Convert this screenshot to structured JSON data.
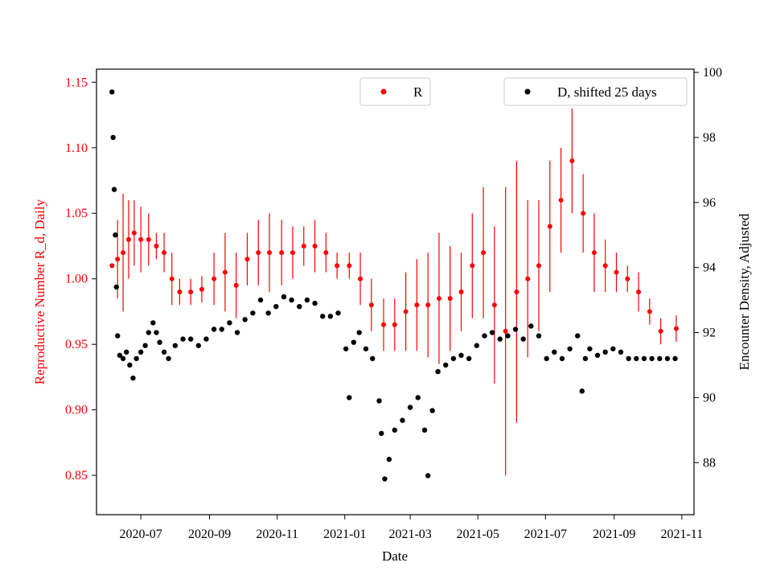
{
  "colors": {
    "r_series": "#ff0000",
    "d_series": "#000000",
    "axes": "#000000",
    "background": "#ffffff"
  },
  "chart_data": {
    "type": "scatter",
    "xlabel": "Date",
    "ylabel_left": "Reproductive Number R_d, Daily",
    "ylabel_right": "Encounter Density, Adjusted",
    "x_ticks": [
      "2020-07",
      "2020-09",
      "2020-11",
      "2021-01",
      "2021-03",
      "2021-05",
      "2021-07",
      "2021-09",
      "2021-11"
    ],
    "ylim_left": [
      0.82,
      1.16
    ],
    "ylim_right": [
      86.4,
      100.1
    ],
    "y_ticks_left": [
      "0.85",
      "0.90",
      "0.95",
      "1.00",
      "1.05",
      "1.10",
      "1.15"
    ],
    "y_ticks_right": [
      "88",
      "90",
      "92",
      "94",
      "96",
      "98",
      "100"
    ],
    "legend_left": {
      "label": "R",
      "placement": "top-center"
    },
    "legend_right": {
      "label": "D, shifted 25 days",
      "placement": "top-right"
    },
    "series": [
      {
        "name": "R",
        "axis": "left",
        "marker": "dot with error bars",
        "points": [
          [
            "2020-06-05",
            1.01,
            0.0
          ],
          [
            "2020-06-10",
            1.015,
            0.03
          ],
          [
            "2020-06-15",
            1.02,
            0.045
          ],
          [
            "2020-06-20",
            1.03,
            0.03
          ],
          [
            "2020-06-25",
            1.035,
            0.025
          ],
          [
            "2020-07-01",
            1.03,
            0.025
          ],
          [
            "2020-07-08",
            1.03,
            0.02
          ],
          [
            "2020-07-15",
            1.025,
            0.01
          ],
          [
            "2020-07-22",
            1.02,
            0.015
          ],
          [
            "2020-07-29",
            1.0,
            0.02
          ],
          [
            "2020-08-05",
            0.99,
            0.01
          ],
          [
            "2020-08-15",
            0.99,
            0.01
          ],
          [
            "2020-08-25",
            0.992,
            0.01
          ],
          [
            "2020-09-05",
            1.0,
            0.02
          ],
          [
            "2020-09-15",
            1.005,
            0.03
          ],
          [
            "2020-09-25",
            0.995,
            0.025
          ],
          [
            "2020-10-05",
            1.015,
            0.02
          ],
          [
            "2020-10-15",
            1.02,
            0.025
          ],
          [
            "2020-10-25",
            1.02,
            0.03
          ],
          [
            "2020-11-05",
            1.02,
            0.025
          ],
          [
            "2020-11-15",
            1.02,
            0.02
          ],
          [
            "2020-11-25",
            1.025,
            0.015
          ],
          [
            "2020-12-05",
            1.025,
            0.02
          ],
          [
            "2020-12-15",
            1.02,
            0.015
          ],
          [
            "2020-12-25",
            1.01,
            0.01
          ],
          [
            "2021-01-05",
            1.01,
            0.01
          ],
          [
            "2021-01-15",
            1.0,
            0.02
          ],
          [
            "2021-01-25",
            0.98,
            0.02
          ],
          [
            "2021-02-05",
            0.965,
            0.02
          ],
          [
            "2021-02-15",
            0.965,
            0.02
          ],
          [
            "2021-02-25",
            0.975,
            0.03
          ],
          [
            "2021-03-07",
            0.98,
            0.035
          ],
          [
            "2021-03-17",
            0.98,
            0.04
          ],
          [
            "2021-03-27",
            0.985,
            0.05
          ],
          [
            "2021-04-06",
            0.985,
            0.04
          ],
          [
            "2021-04-16",
            0.99,
            0.03
          ],
          [
            "2021-04-26",
            1.01,
            0.04
          ],
          [
            "2021-05-06",
            1.02,
            0.05
          ],
          [
            "2021-05-16",
            0.98,
            0.06
          ],
          [
            "2021-05-26",
            0.96,
            0.11
          ],
          [
            "2021-06-05",
            0.99,
            0.1
          ],
          [
            "2021-06-15",
            1.0,
            0.06
          ],
          [
            "2021-06-25",
            1.01,
            0.05
          ],
          [
            "2021-07-05",
            1.04,
            0.05
          ],
          [
            "2021-07-15",
            1.06,
            0.04
          ],
          [
            "2021-07-25",
            1.09,
            0.04
          ],
          [
            "2021-08-04",
            1.05,
            0.03
          ],
          [
            "2021-08-14",
            1.02,
            0.03
          ],
          [
            "2021-08-24",
            1.01,
            0.02
          ],
          [
            "2021-09-03",
            1.005,
            0.015
          ],
          [
            "2021-09-13",
            1.0,
            0.01
          ],
          [
            "2021-09-23",
            0.99,
            0.015
          ],
          [
            "2021-10-03",
            0.975,
            0.01
          ],
          [
            "2021-10-13",
            0.96,
            0.01
          ],
          [
            "2021-10-27",
            0.962,
            0.01
          ]
        ]
      },
      {
        "name": "D, shifted 25 days",
        "axis": "right",
        "marker": "dot",
        "points": [
          [
            "2020-06-05",
            99.4
          ],
          [
            "2020-06-06",
            98.0
          ],
          [
            "2020-06-07",
            96.4
          ],
          [
            "2020-06-08",
            95.0
          ],
          [
            "2020-06-09",
            93.4
          ],
          [
            "2020-06-10",
            91.9
          ],
          [
            "2020-06-12",
            91.3
          ],
          [
            "2020-06-15",
            91.2
          ],
          [
            "2020-06-18",
            91.4
          ],
          [
            "2020-06-21",
            91.0
          ],
          [
            "2020-06-24",
            90.6
          ],
          [
            "2020-06-27",
            91.2
          ],
          [
            "2020-07-01",
            91.4
          ],
          [
            "2020-07-05",
            91.6
          ],
          [
            "2020-07-08",
            92.0
          ],
          [
            "2020-07-12",
            92.3
          ],
          [
            "2020-07-15",
            92.0
          ],
          [
            "2020-07-18",
            91.7
          ],
          [
            "2020-07-22",
            91.4
          ],
          [
            "2020-07-26",
            91.2
          ],
          [
            "2020-08-01",
            91.6
          ],
          [
            "2020-08-08",
            91.8
          ],
          [
            "2020-08-15",
            91.8
          ],
          [
            "2020-08-22",
            91.6
          ],
          [
            "2020-08-29",
            91.8
          ],
          [
            "2020-09-05",
            92.1
          ],
          [
            "2020-09-12",
            92.1
          ],
          [
            "2020-09-19",
            92.3
          ],
          [
            "2020-09-26",
            92.0
          ],
          [
            "2020-10-03",
            92.4
          ],
          [
            "2020-10-10",
            92.6
          ],
          [
            "2020-10-17",
            93.0
          ],
          [
            "2020-10-24",
            92.6
          ],
          [
            "2020-10-31",
            92.8
          ],
          [
            "2020-11-07",
            93.1
          ],
          [
            "2020-11-14",
            93.0
          ],
          [
            "2020-11-21",
            92.8
          ],
          [
            "2020-11-28",
            93.0
          ],
          [
            "2020-12-05",
            92.9
          ],
          [
            "2020-12-12",
            92.5
          ],
          [
            "2020-12-19",
            92.5
          ],
          [
            "2020-12-26",
            92.6
          ],
          [
            "2021-01-02",
            91.5
          ],
          [
            "2021-01-05",
            90.0
          ],
          [
            "2021-01-09",
            91.7
          ],
          [
            "2021-01-14",
            92.0
          ],
          [
            "2021-01-20",
            91.5
          ],
          [
            "2021-01-26",
            91.2
          ],
          [
            "2021-02-01",
            89.9
          ],
          [
            "2021-02-03",
            88.9
          ],
          [
            "2021-02-06",
            87.5
          ],
          [
            "2021-02-10",
            88.1
          ],
          [
            "2021-02-15",
            89.0
          ],
          [
            "2021-02-22",
            89.3
          ],
          [
            "2021-03-01",
            89.7
          ],
          [
            "2021-03-08",
            90.0
          ],
          [
            "2021-03-14",
            89.0
          ],
          [
            "2021-03-17",
            87.6
          ],
          [
            "2021-03-21",
            89.6
          ],
          [
            "2021-03-26",
            90.8
          ],
          [
            "2021-04-02",
            91.0
          ],
          [
            "2021-04-09",
            91.2
          ],
          [
            "2021-04-16",
            91.3
          ],
          [
            "2021-04-23",
            91.2
          ],
          [
            "2021-04-30",
            91.6
          ],
          [
            "2021-05-07",
            91.9
          ],
          [
            "2021-05-14",
            92.0
          ],
          [
            "2021-05-21",
            91.8
          ],
          [
            "2021-05-28",
            91.9
          ],
          [
            "2021-06-04",
            92.1
          ],
          [
            "2021-06-11",
            91.8
          ],
          [
            "2021-06-18",
            92.2
          ],
          [
            "2021-06-25",
            91.9
          ],
          [
            "2021-07-02",
            91.2
          ],
          [
            "2021-07-09",
            91.4
          ],
          [
            "2021-07-16",
            91.2
          ],
          [
            "2021-07-23",
            91.5
          ],
          [
            "2021-07-30",
            91.9
          ],
          [
            "2021-08-03",
            90.2
          ],
          [
            "2021-08-06",
            91.2
          ],
          [
            "2021-08-10",
            91.5
          ],
          [
            "2021-08-17",
            91.3
          ],
          [
            "2021-08-24",
            91.4
          ],
          [
            "2021-08-31",
            91.5
          ],
          [
            "2021-09-07",
            91.4
          ],
          [
            "2021-09-14",
            91.2
          ],
          [
            "2021-09-21",
            91.2
          ],
          [
            "2021-09-28",
            91.2
          ],
          [
            "2021-10-05",
            91.2
          ],
          [
            "2021-10-12",
            91.2
          ],
          [
            "2021-10-19",
            91.2
          ],
          [
            "2021-10-26",
            91.2
          ]
        ]
      }
    ]
  }
}
